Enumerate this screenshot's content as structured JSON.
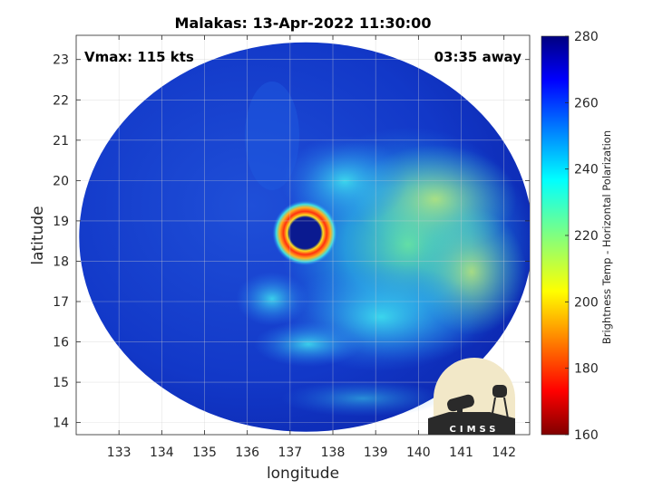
{
  "title": "Malakas: 13-Apr-2022 11:30:00",
  "vmax_label": "Vmax: 115 kts",
  "away_label": "03:35 away",
  "map": {
    "xlabel": "longitude",
    "ylabel": "latitude",
    "xlim": [
      132,
      142.6
    ],
    "ylim": [
      13.7,
      23.6
    ],
    "xticks": [
      "133",
      "134",
      "135",
      "136",
      "137",
      "138",
      "139",
      "140",
      "141",
      "142"
    ],
    "yticks": [
      "14",
      "15",
      "16",
      "17",
      "18",
      "19",
      "20",
      "21",
      "22",
      "23"
    ],
    "storm_center": {
      "lon": 137.35,
      "lat": 18.7
    },
    "swath_center": {
      "lon": 137.37,
      "lat": 18.6
    },
    "grid": true
  },
  "colorbar": {
    "label": "Brightness Temp - Horizontal Polarization",
    "min": 160,
    "max": 280,
    "ticks": [
      "280",
      "260",
      "240",
      "220",
      "200",
      "180",
      "160"
    ]
  },
  "logo": {
    "text": "CIMSS"
  }
}
